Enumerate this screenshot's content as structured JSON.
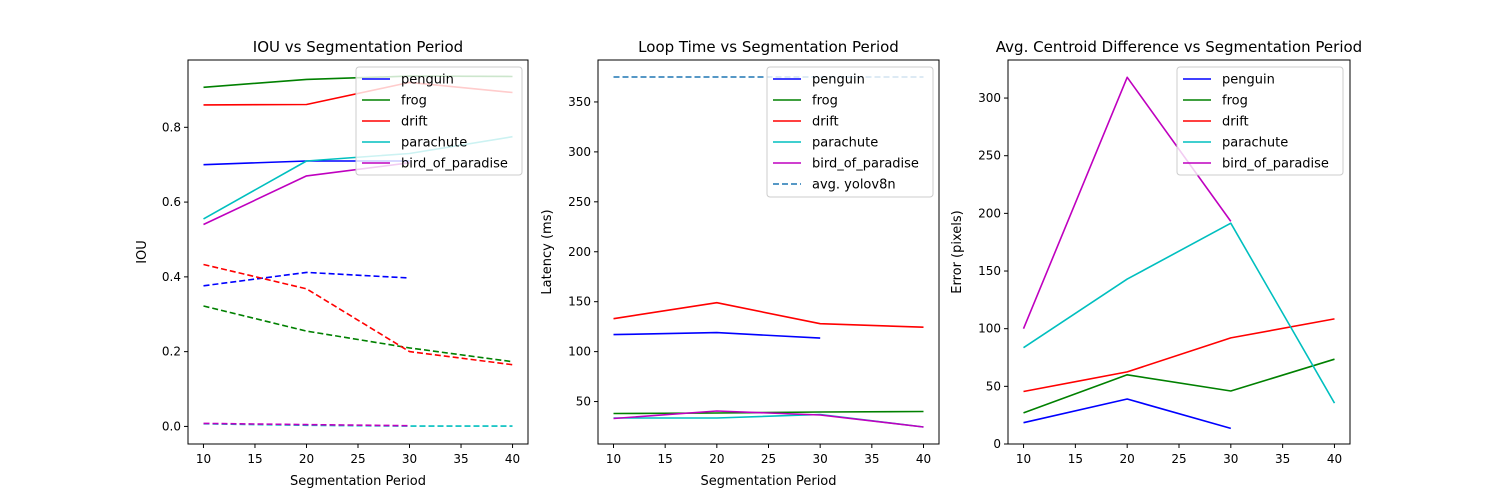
{
  "chart_data": [
    {
      "type": "line",
      "title": "IOU vs Segmentation Period",
      "xlabel": "Segmentation Period",
      "ylabel": "IOU",
      "xlim": [
        8.5,
        41.5
      ],
      "ylim": [
        -0.047,
        0.98
      ],
      "xticks": [
        10,
        15,
        20,
        25,
        30,
        35,
        40
      ],
      "yticks": [
        0.0,
        0.2,
        0.4,
        0.6,
        0.8
      ],
      "ytick_labels": [
        "0.0",
        "0.2",
        "0.4",
        "0.6",
        "0.8"
      ],
      "legend_position": "top-right",
      "series": [
        {
          "name": "penguin",
          "color": "#0000ff",
          "dash": false,
          "x": [
            10,
            20,
            30
          ],
          "y": [
            0.7,
            0.71,
            0.71
          ]
        },
        {
          "name": "frog",
          "color": "#008000",
          "dash": false,
          "x": [
            10,
            20,
            30,
            40
          ],
          "y": [
            0.907,
            0.928,
            0.937,
            0.936
          ]
        },
        {
          "name": "drift",
          "color": "#ff0000",
          "dash": false,
          "x": [
            10,
            20,
            30,
            40
          ],
          "y": [
            0.86,
            0.861,
            0.92,
            0.893
          ]
        },
        {
          "name": "parachute",
          "color": "#00bfbf",
          "dash": false,
          "x": [
            10,
            20,
            30,
            40
          ],
          "y": [
            0.555,
            0.71,
            0.73,
            0.775
          ]
        },
        {
          "name": "bird_of_paradise",
          "color": "#bf00bf",
          "dash": false,
          "x": [
            10,
            20,
            30
          ],
          "y": [
            0.54,
            0.67,
            0.705
          ]
        },
        {
          "color": "#0000ff",
          "dash": true,
          "x": [
            10,
            20,
            30
          ],
          "y": [
            0.376,
            0.412,
            0.397
          ]
        },
        {
          "color": "#008000",
          "dash": true,
          "x": [
            10,
            20,
            30,
            40
          ],
          "y": [
            0.322,
            0.255,
            0.21,
            0.173
          ]
        },
        {
          "color": "#ff0000",
          "dash": true,
          "x": [
            10,
            20,
            30,
            40
          ],
          "y": [
            0.433,
            0.368,
            0.2,
            0.165
          ]
        },
        {
          "color": "#00bfbf",
          "dash": true,
          "x": [
            10,
            20,
            30,
            40
          ],
          "y": [
            0.007,
            0.003,
            0.001,
            0.001
          ]
        },
        {
          "color": "#bf00bf",
          "dash": true,
          "x": [
            10,
            20,
            30
          ],
          "y": [
            0.008,
            0.005,
            0.002
          ]
        }
      ]
    },
    {
      "type": "line",
      "title": "Loop Time vs Segmentation Period",
      "xlabel": "Segmentation Period",
      "ylabel": "Latency (ms)",
      "xlim": [
        8.5,
        41.5
      ],
      "ylim": [
        7.5,
        392
      ],
      "xticks": [
        10,
        15,
        20,
        25,
        30,
        35,
        40
      ],
      "yticks": [
        50,
        100,
        150,
        200,
        250,
        300,
        350
      ],
      "ytick_labels": [
        "50",
        "100",
        "150",
        "200",
        "250",
        "300",
        "350"
      ],
      "legend_position": "top-right",
      "series": [
        {
          "name": "penguin",
          "color": "#0000ff",
          "dash": false,
          "x": [
            10,
            20,
            30
          ],
          "y": [
            117,
            119,
            113.5
          ]
        },
        {
          "name": "frog",
          "color": "#008000",
          "dash": false,
          "x": [
            10,
            20,
            30,
            40
          ],
          "y": [
            38,
            38.5,
            39.5,
            40
          ]
        },
        {
          "name": "drift",
          "color": "#ff0000",
          "dash": false,
          "x": [
            10,
            20,
            30,
            40
          ],
          "y": [
            133,
            149,
            128,
            124.5
          ]
        },
        {
          "name": "parachute",
          "color": "#00bfbf",
          "dash": false,
          "x": [
            10,
            20,
            30,
            40
          ],
          "y": [
            33.5,
            33.5,
            37,
            24.5
          ]
        },
        {
          "name": "bird_of_paradise",
          "color": "#bf00bf",
          "dash": false,
          "x": [
            10,
            20,
            30,
            40
          ],
          "y": [
            33,
            40.5,
            36.5,
            24.5
          ]
        },
        {
          "name": "avg. yolov8n",
          "color": "#1f77b4",
          "dash": true,
          "x": [
            10,
            20,
            30,
            40
          ],
          "y": [
            375,
            375,
            375,
            375
          ]
        }
      ]
    },
    {
      "type": "line",
      "title": "Avg. Centroid Difference vs Segmentation Period",
      "xlabel": "",
      "ylabel": "Error (pixels)",
      "xlim": [
        8.5,
        41.5
      ],
      "ylim": [
        0,
        333
      ],
      "xticks": [
        10,
        15,
        20,
        25,
        30,
        35,
        40
      ],
      "yticks": [
        0,
        50,
        100,
        150,
        200,
        250,
        300
      ],
      "ytick_labels": [
        "0",
        "50",
        "100",
        "150",
        "200",
        "250",
        "300"
      ],
      "legend_position": "top-right",
      "series": [
        {
          "name": "penguin",
          "color": "#0000ff",
          "dash": false,
          "x": [
            10,
            20,
            30
          ],
          "y": [
            18.5,
            39,
            13.5
          ]
        },
        {
          "name": "frog",
          "color": "#008000",
          "dash": false,
          "x": [
            10,
            20,
            30,
            40
          ],
          "y": [
            27,
            60,
            46,
            73.5
          ]
        },
        {
          "name": "drift",
          "color": "#ff0000",
          "dash": false,
          "x": [
            10,
            20,
            30,
            40
          ],
          "y": [
            45.5,
            62.5,
            92,
            108.5
          ]
        },
        {
          "name": "parachute",
          "color": "#00bfbf",
          "dash": false,
          "x": [
            10,
            20,
            30,
            40
          ],
          "y": [
            83.5,
            143,
            191.5,
            35.5
          ]
        },
        {
          "name": "bird_of_paradise",
          "color": "#bf00bf",
          "dash": false,
          "x": [
            10,
            20,
            30
          ],
          "y": [
            100,
            318,
            193
          ]
        }
      ]
    }
  ]
}
